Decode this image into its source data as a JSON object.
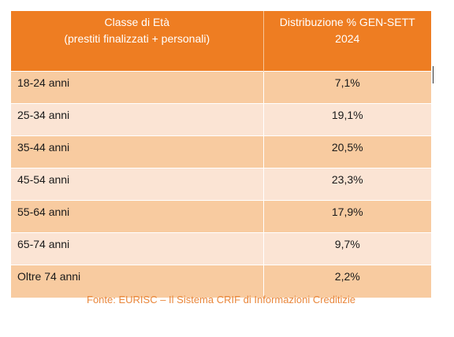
{
  "table": {
    "header": {
      "col1_line1": "Classe di Età",
      "col1_line2": "(prestiti finalizzati + personali)",
      "col2_line1": "Distribuzione % GEN-SETT",
      "col2_line2": "2024"
    },
    "rows": [
      {
        "age": "18-24 anni",
        "pct": "7,1%"
      },
      {
        "age": "25-34 anni",
        "pct": "19,1%"
      },
      {
        "age": "35-44 anni",
        "pct": "20,5%"
      },
      {
        "age": "45-54 anni",
        "pct": "23,3%"
      },
      {
        "age": "55-64 anni",
        "pct": "17,9%"
      },
      {
        "age": "65-74 anni",
        "pct": "9,7%"
      },
      {
        "age": "Oltre 74 anni",
        "pct": "2,2%"
      }
    ]
  },
  "source": "Fonte: EURISC – Il Sistema CRIF di Informazioni Creditizie",
  "colors": {
    "header_bg": "#ee7d22",
    "row_dark": "#f8cba0",
    "row_light": "#fbe4d4",
    "source_text": "#e9863a"
  }
}
